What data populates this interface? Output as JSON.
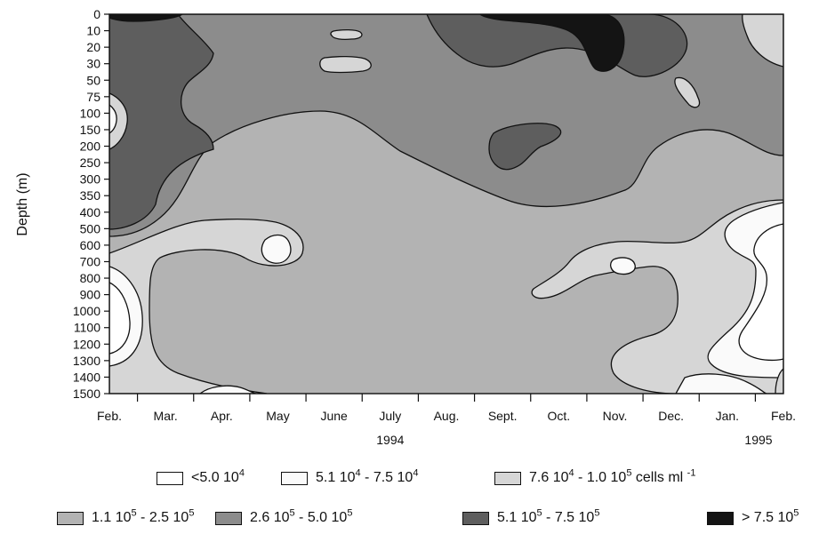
{
  "chart_data": {
    "type": "heatmap",
    "title": "",
    "xlabel": "",
    "ylabel": "Depth (m)",
    "x": [
      "Feb.",
      "Mar.",
      "Apr.",
      "May",
      "June",
      "July",
      "Aug.",
      "Sept.",
      "Oct.",
      "Nov.",
      "Dec.",
      "Jan.",
      "Feb."
    ],
    "year_labels": [
      {
        "label": "1994",
        "month": "July"
      },
      {
        "label": "1995",
        "month": "Feb."
      }
    ],
    "y": [
      0,
      10,
      20,
      30,
      50,
      75,
      100,
      150,
      200,
      250,
      300,
      350,
      400,
      500,
      600,
      700,
      800,
      900,
      1000,
      1100,
      1200,
      1300,
      1400,
      1500
    ],
    "y_reversed": true,
    "legend_placement": "bottom",
    "unit": "cells ml",
    "unit_exp": "-1",
    "classes": [
      {
        "id": 1,
        "text": "<5.0 10",
        "exp": "4",
        "color": "#ffffff"
      },
      {
        "id": 2,
        "text": "5.1 10",
        "exp": "4",
        "text2": " - 7.5 10",
        "exp2": "4",
        "color": "#fafafa"
      },
      {
        "id": 3,
        "text": "7.6 10",
        "exp": "4",
        "text2": " - 1.0 10",
        "exp2": "5",
        "color": "#d6d6d6"
      },
      {
        "id": 4,
        "text": "1.1 10",
        "exp": "5",
        "text2": " - 2.5 10",
        "exp2": "5",
        "color": "#b3b3b3"
      },
      {
        "id": 5,
        "text": "2.6 10",
        "exp": "5",
        "text2": " - 5.0 10",
        "exp2": "5",
        "color": "#8c8c8c"
      },
      {
        "id": 6,
        "text": "5.1 10",
        "exp": "5",
        "text2": " - 7.5 10",
        "exp2": "5",
        "color": "#5e5e5e"
      },
      {
        "id": 7,
        "text": "> 7.5 10",
        "exp": "5",
        "color": "#141414"
      }
    ]
  }
}
